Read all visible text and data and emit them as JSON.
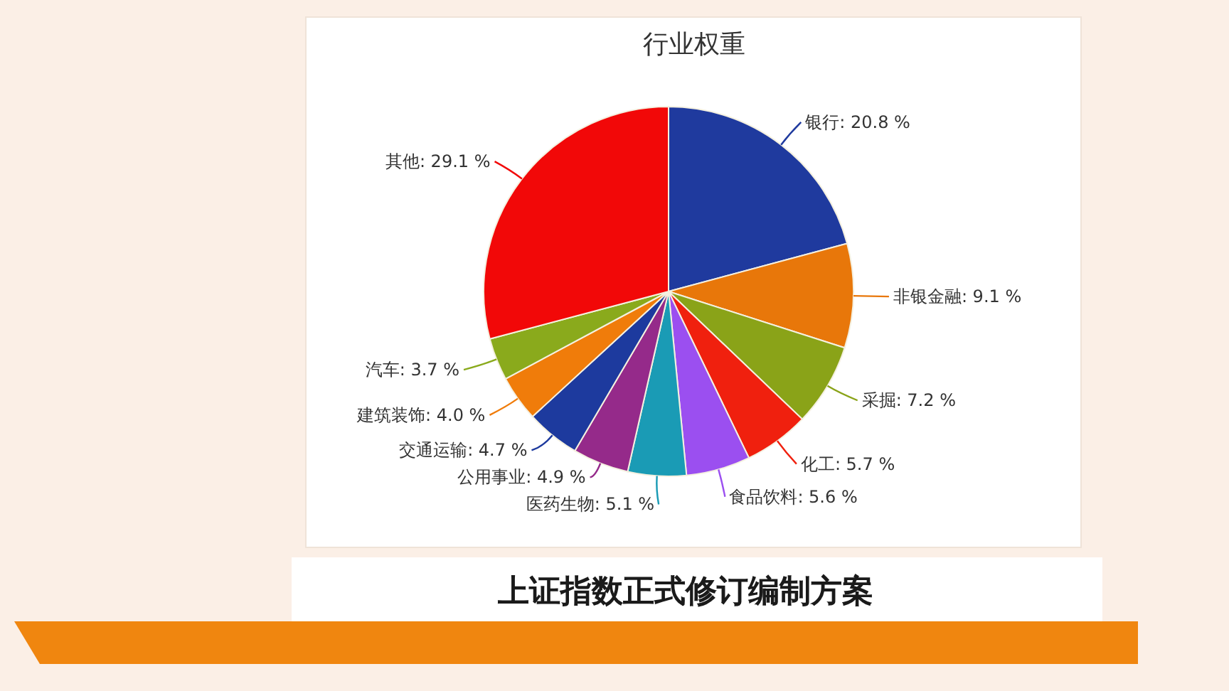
{
  "chart_data": {
    "type": "pie",
    "title": "行业权重",
    "categories": [
      "银行",
      "非银金融",
      "采掘",
      "化工",
      "食品饮料",
      "医药生物",
      "公用事业",
      "交通运输",
      "建筑装饰",
      "汽车",
      "其他"
    ],
    "values": [
      20.8,
      9.1,
      7.2,
      5.7,
      5.6,
      5.1,
      4.9,
      4.7,
      4.0,
      3.7,
      29.1
    ],
    "colors": [
      "#1f3a9e",
      "#e8770a",
      "#8aa318",
      "#f0200e",
      "#9b4ff0",
      "#1a9bb5",
      "#952a8a",
      "#1d3a9e",
      "#f07c0a",
      "#8aaa1c",
      "#f20808"
    ],
    "value_labels": [
      ": 20.8 %",
      ": 9.1 %",
      ": 7.2 %",
      ": 5.7 %",
      ": 5.6 %",
      ": 5.1 %",
      ": 4.9 %",
      ": 4.7 %",
      ": 4.0 %",
      ": 3.7 %",
      ": 29.1 %"
    ],
    "annotations": [
      "上证指数正式修订编制方案"
    ]
  }
}
